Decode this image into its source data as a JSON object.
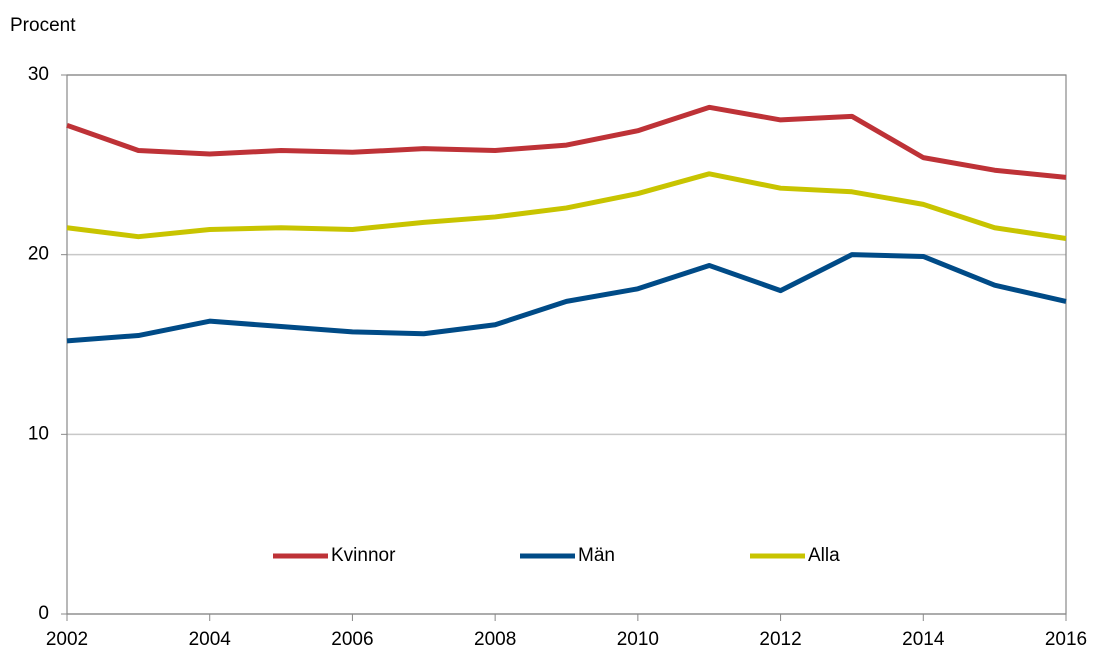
{
  "chart_data": {
    "type": "line",
    "y_label": "Procent",
    "x": [
      2002,
      2003,
      2004,
      2005,
      2006,
      2007,
      2008,
      2009,
      2010,
      2011,
      2012,
      2013,
      2014,
      2015,
      2016
    ],
    "series": [
      {
        "name": "Kvinnor",
        "color": "#be3237",
        "values": [
          27.2,
          25.8,
          25.6,
          25.8,
          25.7,
          25.9,
          25.8,
          26.1,
          26.9,
          28.2,
          27.5,
          27.7,
          25.4,
          24.7,
          24.3
        ]
      },
      {
        "name": "Män",
        "color": "#004b87",
        "values": [
          15.2,
          15.5,
          16.3,
          16.0,
          15.7,
          15.6,
          16.1,
          17.4,
          18.1,
          19.4,
          18.0,
          20.0,
          19.9,
          18.3,
          17.4
        ]
      },
      {
        "name": "Alla",
        "color": "#c8c400",
        "values": [
          21.5,
          21.0,
          21.4,
          21.5,
          21.4,
          21.8,
          22.1,
          22.6,
          23.4,
          24.5,
          23.7,
          23.5,
          22.8,
          21.5,
          20.9
        ]
      }
    ],
    "xlim": [
      2002,
      2016
    ],
    "xticks": [
      2002,
      2004,
      2006,
      2008,
      2010,
      2012,
      2014,
      2016
    ],
    "ylim": [
      0,
      30
    ],
    "yticks": [
      0,
      10,
      20,
      30
    ],
    "grid": true,
    "legend": "bottom"
  }
}
